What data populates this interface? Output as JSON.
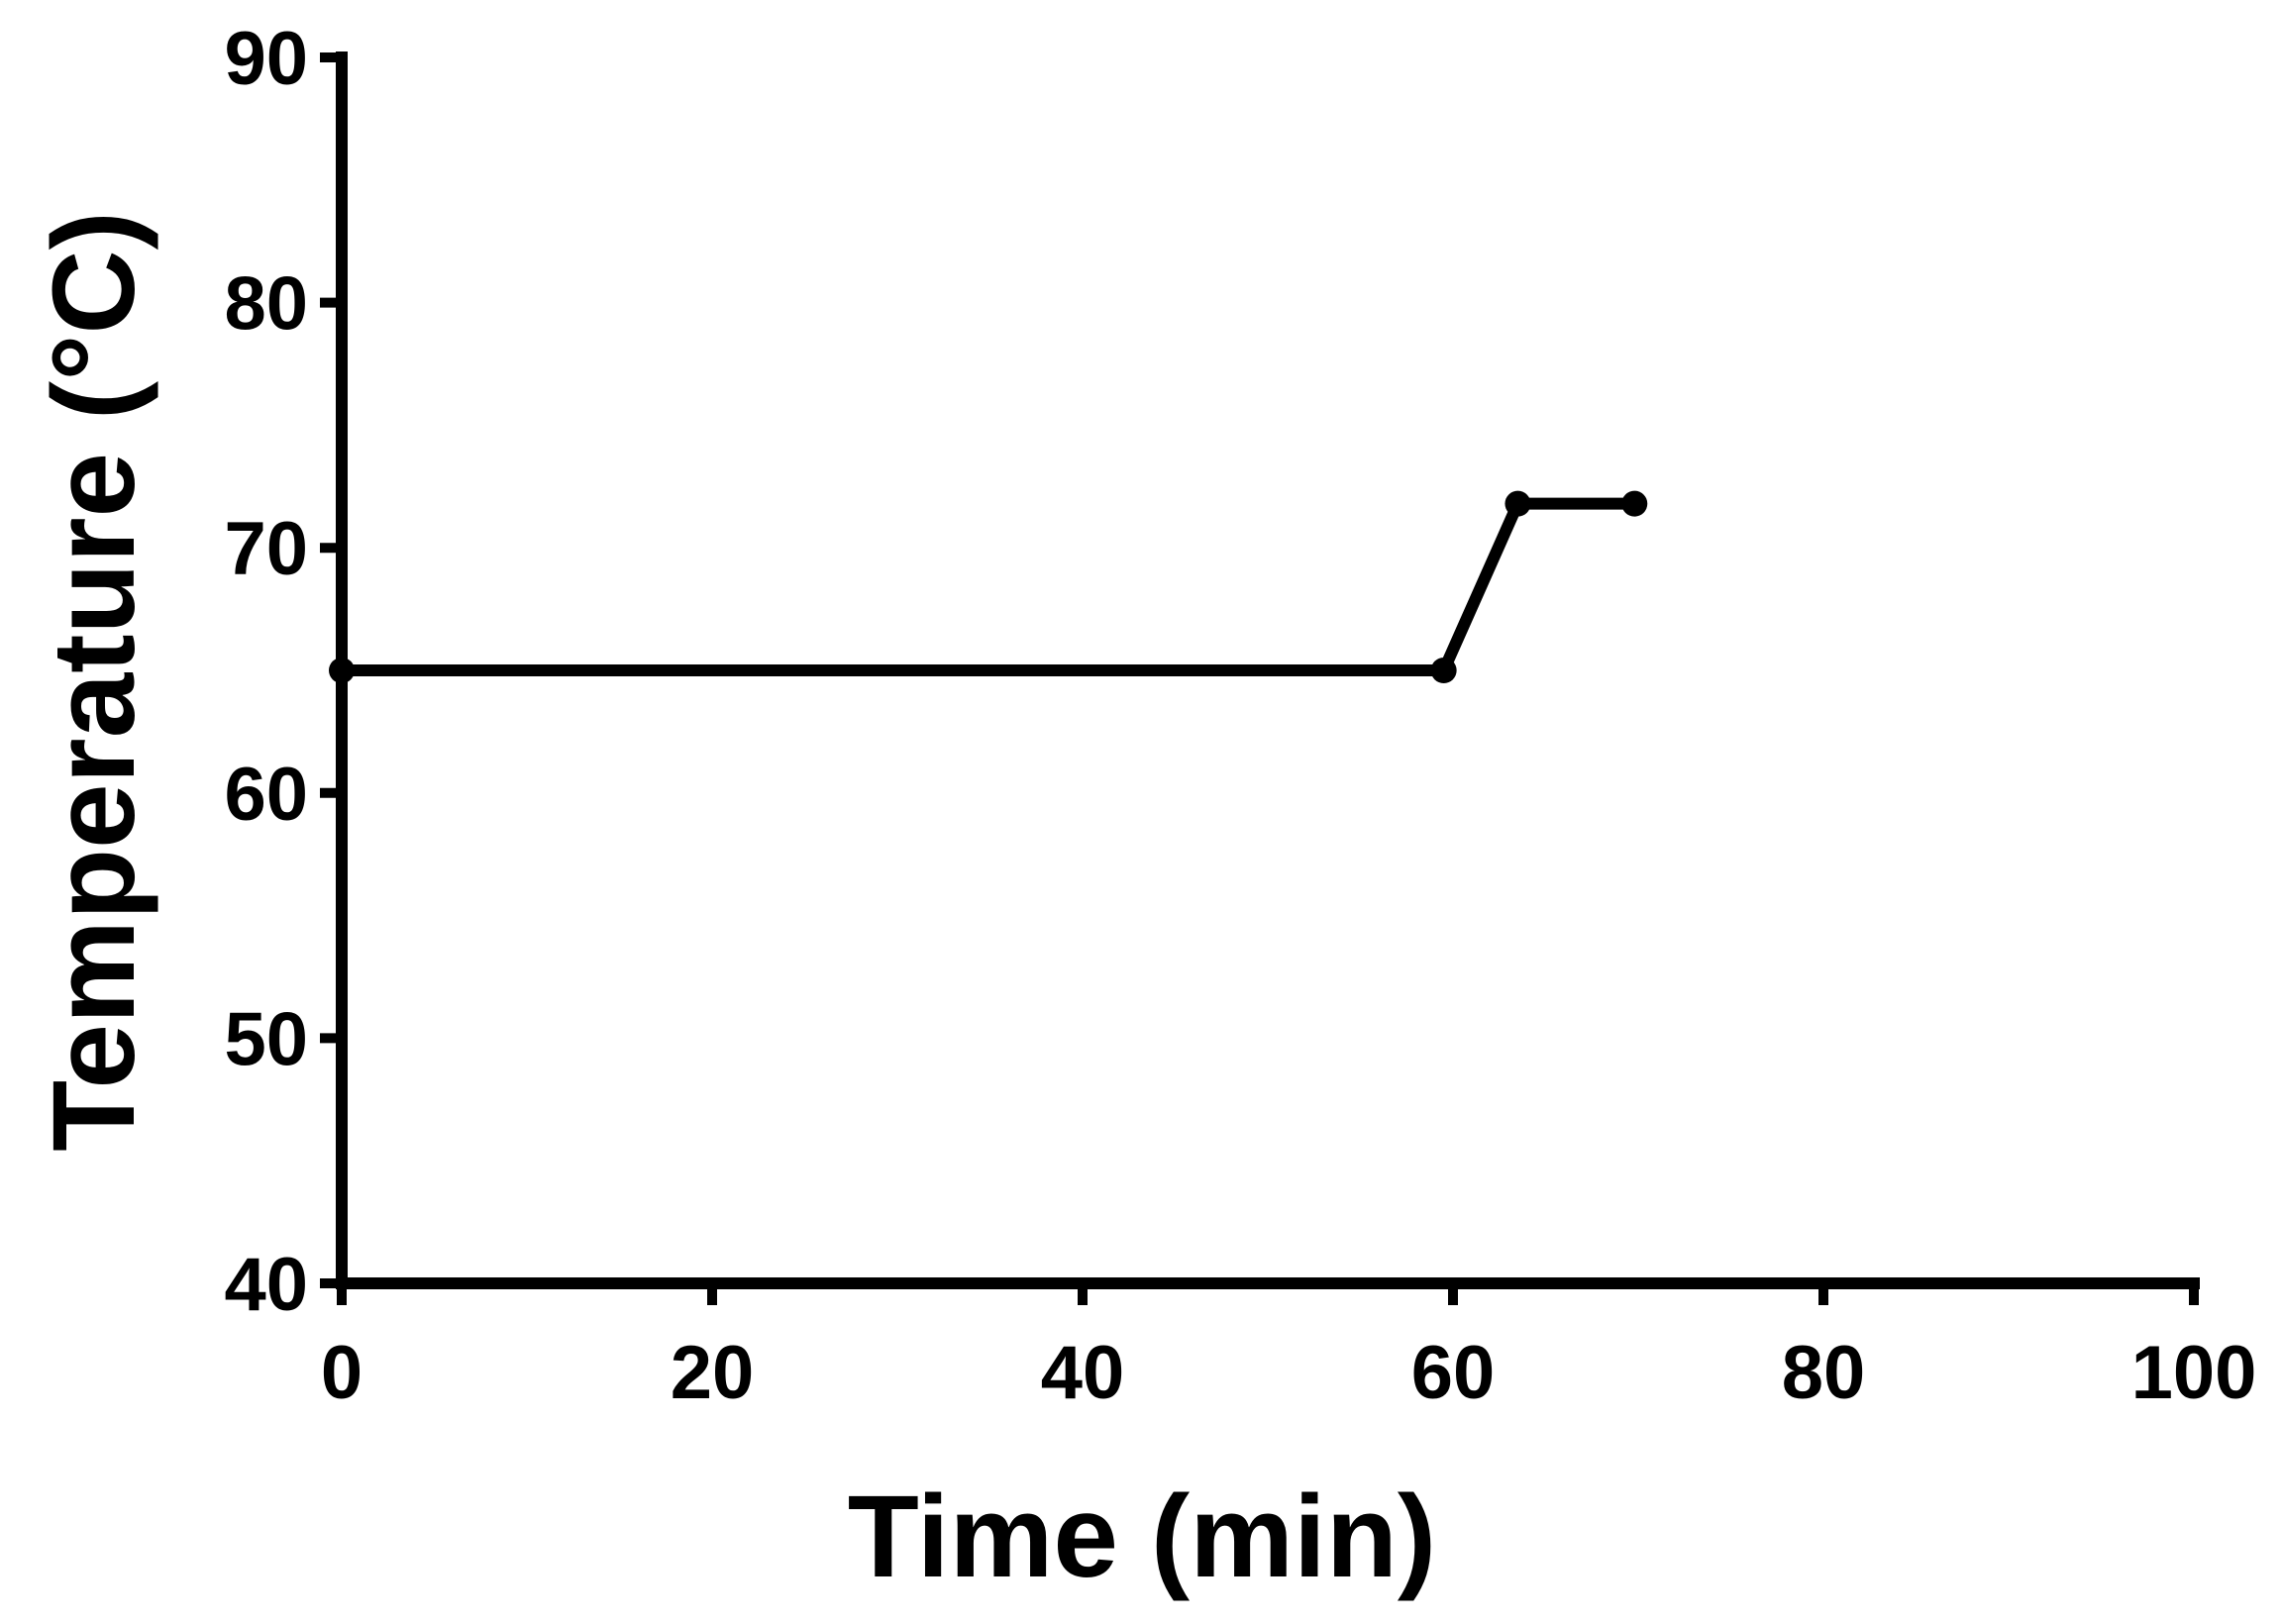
{
  "chart_data": {
    "type": "line",
    "title": "",
    "xlabel": "Time (min)",
    "ylabel": "Temperature (°C)",
    "xlim": [
      0,
      100
    ],
    "ylim": [
      40,
      90
    ],
    "x_ticks": [
      "0",
      "20",
      "40",
      "60",
      "80",
      "100"
    ],
    "y_ticks": [
      "40",
      "50",
      "60",
      "70",
      "80",
      "90"
    ],
    "grid": false,
    "legend": "none",
    "line_color": "#000000",
    "series": [
      {
        "x": [
          0,
          59.5,
          63.5,
          69.8
        ],
        "y": [
          65,
          65,
          71.8,
          71.8
        ]
      }
    ]
  }
}
